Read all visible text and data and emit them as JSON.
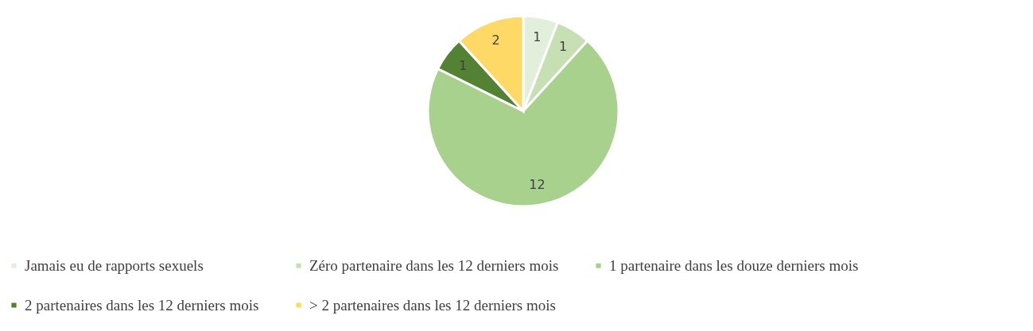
{
  "chart_data": {
    "type": "pie",
    "categories": [
      "Jamais eu de rapports sexuels",
      "Zéro partenaire dans les 12 derniers mois",
      "1 partenaire dans les douze derniers mois",
      "2 partenaires dans les 12 derniers mois",
      "> 2 partenaires dans les 12 derniers mois"
    ],
    "values": [
      1,
      1,
      12,
      1,
      2
    ],
    "colors": [
      "#e2efda",
      "#c6e0b4",
      "#a9d18e",
      "#548235",
      "#ffd966"
    ],
    "data_labels": true,
    "legend": "bottom"
  }
}
